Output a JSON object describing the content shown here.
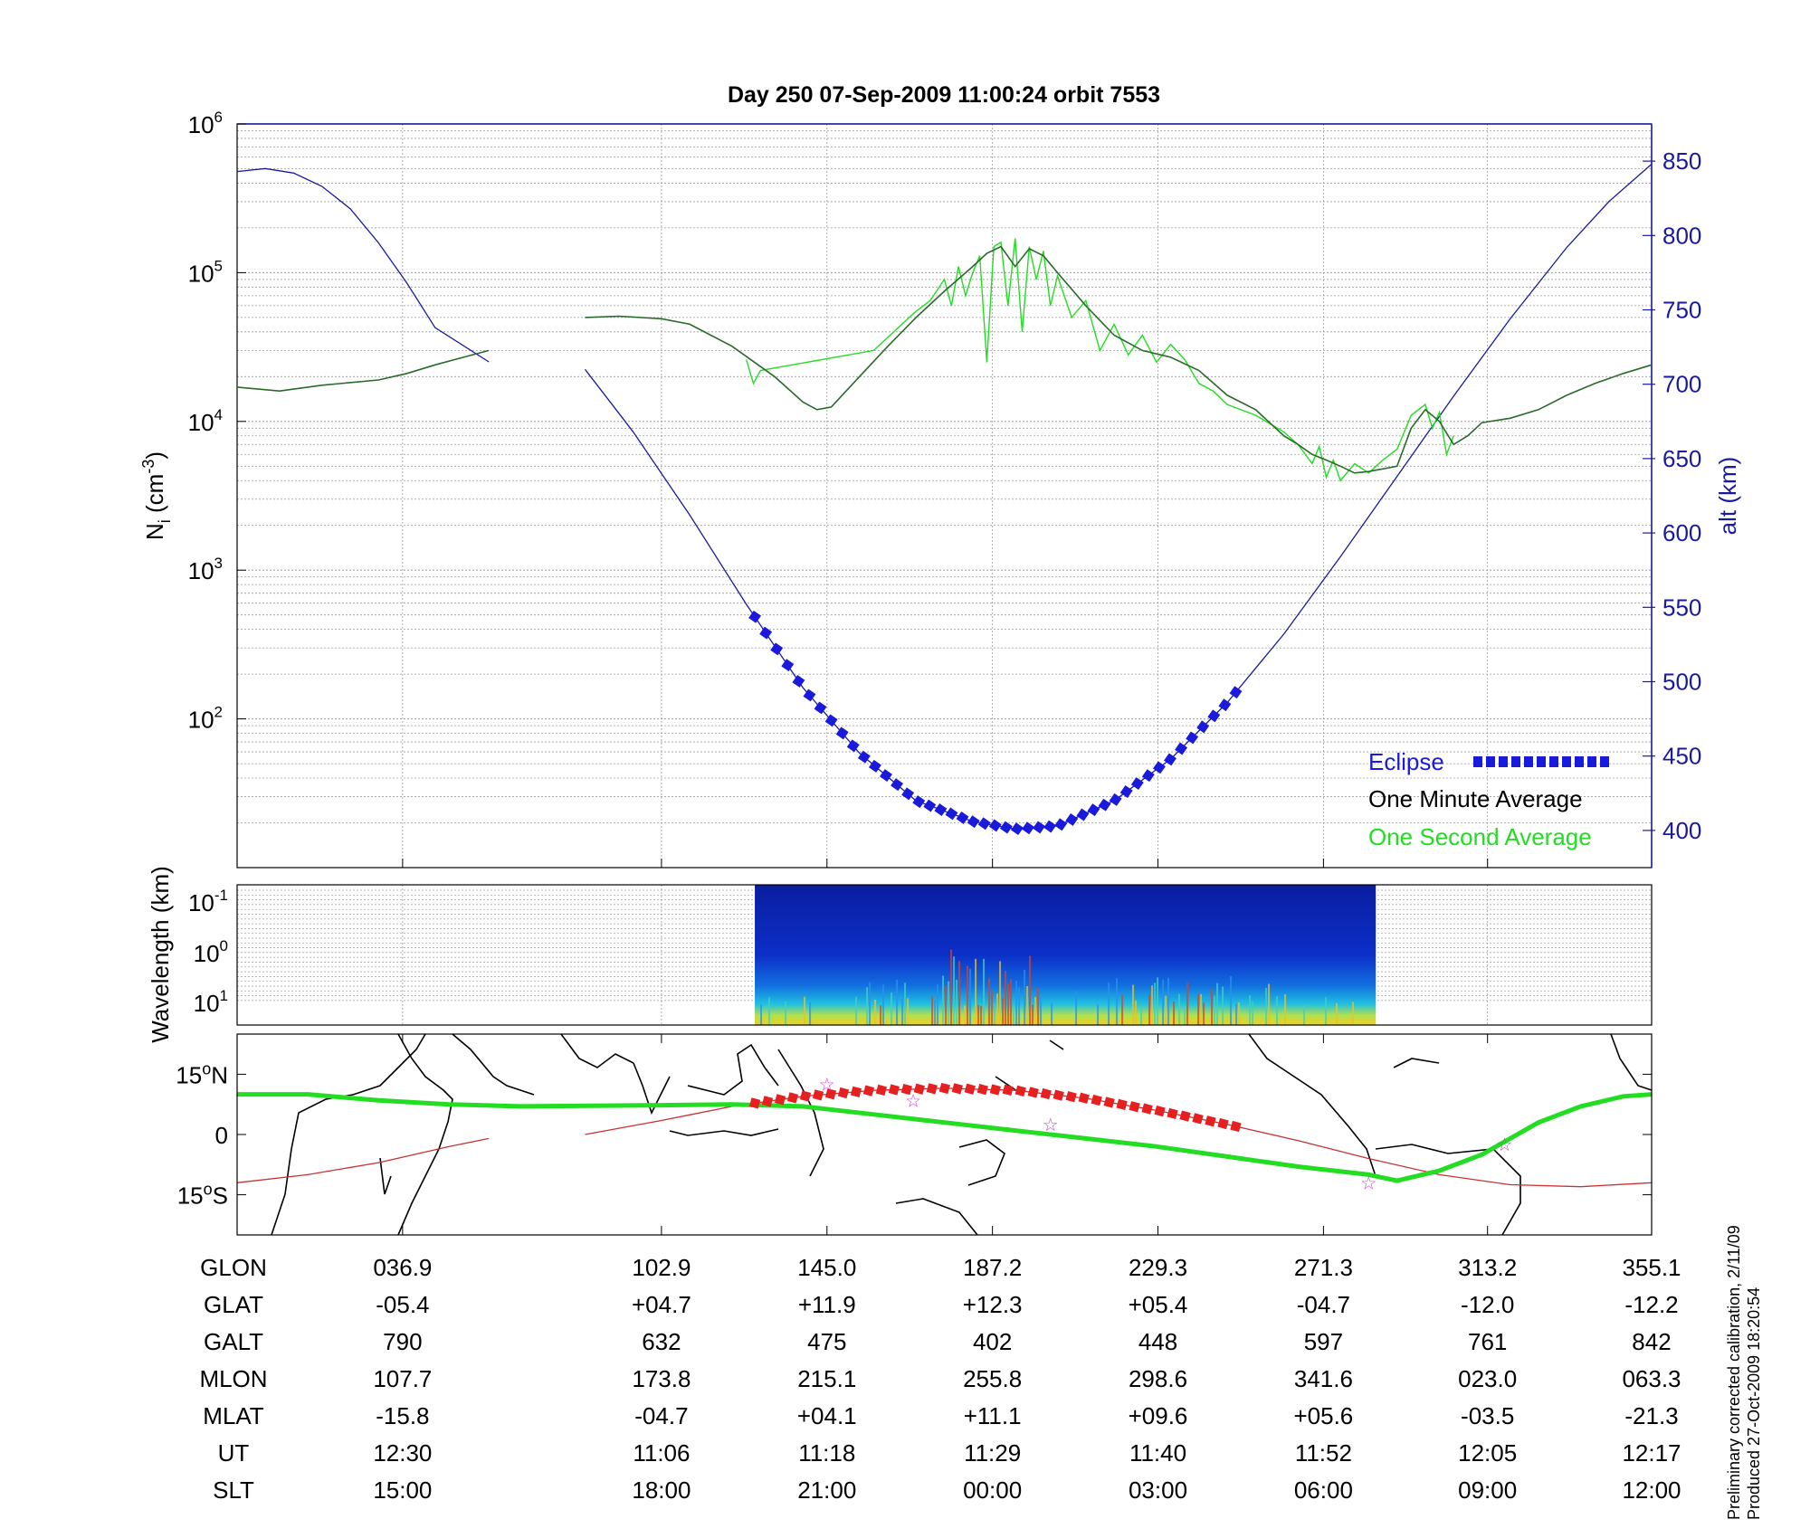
{
  "chart_data": [
    {
      "type": "line",
      "title": "Day 250  07-Sep-2009 11:00:24   orbit 7553",
      "ylabel_left_base": "N",
      "ylabel_left_sub": "i",
      "ylabel_left_unit": "(cm",
      "ylabel_left_exp": "-3",
      "ylabel_left_close": ")",
      "ylabel_right": "alt (km)",
      "y_left_scale": "log",
      "y_left_range": [
        10,
        1000000
      ],
      "y_left_ticks": [
        {
          "base": "10",
          "exp": "2",
          "value": 100
        },
        {
          "base": "10",
          "exp": "3",
          "value": 1000
        },
        {
          "base": "10",
          "exp": "4",
          "value": 10000
        },
        {
          "base": "10",
          "exp": "5",
          "value": 100000
        },
        {
          "base": "10",
          "exp": "6",
          "value": 1000000
        }
      ],
      "y_right_range": [
        375,
        875
      ],
      "y_right_ticks": [
        "400",
        "450",
        "500",
        "550",
        "600",
        "650",
        "700",
        "750",
        "800",
        "850"
      ],
      "x_range": [
        0,
        1
      ],
      "grid": true,
      "legend_position": "bottom-right",
      "legend": [
        {
          "label": "Eclipse",
          "color": "#1a1adc"
        },
        {
          "label": "One Minute Average",
          "color": "#000000"
        },
        {
          "label": "One Second Average",
          "color": "#22dd22"
        }
      ],
      "series": [
        {
          "name": "One Minute Average",
          "color": "#2a6a2a",
          "axis": "left",
          "points": [
            [
              0.0,
              17000
            ],
            [
              0.03,
              16000
            ],
            [
              0.06,
              17500
            ],
            [
              0.1,
              19000
            ],
            [
              0.12,
              21000
            ],
            [
              0.14,
              24000
            ],
            [
              0.16,
              27000
            ],
            [
              0.178,
              30000
            ],
            null,
            [
              0.246,
              50000
            ],
            [
              0.27,
              51000
            ],
            [
              0.3,
              49000
            ],
            [
              0.32,
              45000
            ],
            [
              0.35,
              32000
            ],
            [
              0.38,
              20000
            ],
            [
              0.4,
              13500
            ],
            [
              0.41,
              12000
            ],
            [
              0.42,
              12500
            ],
            [
              0.44,
              20000
            ],
            [
              0.46,
              32000
            ],
            [
              0.48,
              50000
            ],
            [
              0.5,
              75000
            ],
            [
              0.52,
              110000
            ],
            [
              0.53,
              135000
            ],
            [
              0.54,
              150000
            ],
            [
              0.55,
              110000
            ],
            [
              0.56,
              145000
            ],
            [
              0.57,
              130000
            ],
            [
              0.58,
              100000
            ],
            [
              0.6,
              60000
            ],
            [
              0.62,
              38000
            ],
            [
              0.64,
              30000
            ],
            [
              0.66,
              27000
            ],
            [
              0.68,
              22000
            ],
            [
              0.7,
              15000
            ],
            [
              0.72,
              12000
            ],
            [
              0.74,
              8000
            ],
            [
              0.75,
              7000
            ],
            [
              0.76,
              6000
            ],
            [
              0.77,
              5500
            ],
            [
              0.78,
              5000
            ],
            [
              0.79,
              4500
            ],
            [
              0.8,
              4600
            ],
            [
              0.82,
              5000
            ],
            [
              0.83,
              9000
            ],
            [
              0.84,
              12000
            ],
            [
              0.85,
              10000
            ],
            [
              0.86,
              7000
            ],
            [
              0.87,
              8000
            ],
            [
              0.88,
              9800
            ],
            [
              0.9,
              10500
            ],
            [
              0.92,
              12000
            ],
            [
              0.94,
              15000
            ],
            [
              0.96,
              18000
            ],
            [
              0.98,
              21000
            ],
            [
              1.0,
              24000
            ]
          ]
        },
        {
          "name": "One Second Average",
          "color": "#22dd22",
          "axis": "left",
          "points": [
            [
              0.36,
              26000
            ],
            [
              0.365,
              18000
            ],
            [
              0.37,
              22000
            ],
            [
              0.45,
              30000
            ],
            [
              0.47,
              45000
            ],
            [
              0.48,
              55000
            ],
            [
              0.49,
              65000
            ],
            [
              0.5,
              90000
            ],
            [
              0.505,
              60000
            ],
            [
              0.51,
              110000
            ],
            [
              0.515,
              70000
            ],
            [
              0.52,
              100000
            ],
            [
              0.525,
              130000
            ],
            [
              0.53,
              25000
            ],
            [
              0.535,
              150000
            ],
            [
              0.54,
              160000
            ],
            [
              0.545,
              60000
            ],
            [
              0.55,
              170000
            ],
            [
              0.555,
              40000
            ],
            [
              0.56,
              150000
            ],
            [
              0.565,
              90000
            ],
            [
              0.57,
              140000
            ],
            [
              0.575,
              60000
            ],
            [
              0.58,
              95000
            ],
            [
              0.59,
              50000
            ],
            [
              0.6,
              65000
            ],
            [
              0.61,
              30000
            ],
            [
              0.62,
              45000
            ],
            [
              0.63,
              28000
            ],
            [
              0.64,
              38000
            ],
            [
              0.65,
              25000
            ],
            [
              0.66,
              33000
            ],
            [
              0.67,
              26000
            ],
            [
              0.68,
              18000
            ],
            [
              0.69,
              16000
            ],
            [
              0.7,
              13000
            ],
            [
              0.72,
              11000
            ],
            [
              0.74,
              8500
            ],
            [
              0.75,
              7000
            ],
            [
              0.76,
              5200
            ],
            [
              0.765,
              6800
            ],
            [
              0.77,
              4200
            ],
            [
              0.775,
              5500
            ],
            [
              0.78,
              4000
            ],
            [
              0.79,
              5200
            ],
            [
              0.8,
              4500
            ],
            [
              0.81,
              5500
            ],
            [
              0.82,
              6500
            ],
            [
              0.83,
              11000
            ],
            [
              0.84,
              13000
            ],
            [
              0.845,
              9000
            ],
            [
              0.85,
              11500
            ],
            [
              0.855,
              6000
            ],
            [
              0.86,
              8000
            ]
          ]
        },
        {
          "name": "alt (km)",
          "color": "#1a1aa0",
          "axis": "right",
          "points": [
            [
              0.0,
              843
            ],
            [
              0.02,
              845
            ],
            [
              0.04,
              842
            ],
            [
              0.06,
              833
            ],
            [
              0.08,
              818
            ],
            [
              0.1,
              795
            ],
            [
              0.12,
              768
            ],
            [
              0.14,
              738
            ],
            [
              0.178,
              715
            ],
            null,
            [
              0.246,
              710
            ],
            [
              0.28,
              668
            ],
            [
              0.32,
              612
            ],
            [
              0.36,
              552
            ],
            [
              0.4,
              496
            ],
            [
              0.44,
              452
            ],
            [
              0.48,
              420
            ],
            [
              0.52,
              406
            ],
            [
              0.55,
              401
            ],
            [
              0.58,
              403
            ],
            [
              0.62,
              420
            ],
            [
              0.66,
              448
            ],
            [
              0.7,
              486
            ],
            [
              0.74,
              532
            ],
            [
              0.78,
              584
            ],
            [
              0.82,
              638
            ],
            [
              0.86,
              692
            ],
            [
              0.9,
              744
            ],
            [
              0.94,
              792
            ],
            [
              0.97,
              823
            ],
            [
              1.0,
              848
            ]
          ]
        },
        {
          "name": "Eclipse",
          "color": "#1a1adc",
          "axis": "right",
          "x_start": 0.366,
          "x_end": 0.706
        }
      ]
    },
    {
      "type": "heatmap",
      "ylabel": "Wavelength (km)",
      "y_ticks": [
        {
          "base": "10",
          "exp": "-1"
        },
        {
          "base": "10",
          "exp": "0"
        },
        {
          "base": "10",
          "exp": "1"
        }
      ],
      "x_start": 0.366,
      "x_end": 0.805
    },
    {
      "type": "line",
      "map": true,
      "y_ticks": [
        {
          "label": "15",
          "suffix": "N"
        },
        {
          "label": "0",
          "suffix": ""
        },
        {
          "label": "15",
          "suffix": "S"
        }
      ],
      "y_range": [
        -25,
        25
      ],
      "series": [
        {
          "name": "ground track",
          "color": "#22dd22",
          "points": [
            [
              0.0,
              10
            ],
            [
              0.05,
              10
            ],
            [
              0.1,
              8.5
            ],
            [
              0.15,
              7.5
            ],
            [
              0.2,
              7
            ],
            [
              0.3,
              7.3
            ],
            [
              0.35,
              7.5
            ],
            [
              0.4,
              7
            ],
            [
              0.45,
              5
            ],
            [
              0.5,
              3
            ],
            [
              0.55,
              1
            ],
            [
              0.6,
              -1
            ],
            [
              0.65,
              -3
            ],
            [
              0.7,
              -5.5
            ],
            [
              0.75,
              -8
            ],
            [
              0.8,
              -10
            ],
            [
              0.82,
              -11.5
            ],
            [
              0.85,
              -9
            ],
            [
              0.88,
              -5
            ],
            [
              0.9,
              -1
            ],
            [
              0.92,
              3
            ],
            [
              0.95,
              7
            ],
            [
              0.98,
              9.5
            ],
            [
              1.0,
              10
            ]
          ]
        },
        {
          "name": "magnetic equator",
          "color": "#c83232",
          "points": [
            [
              0.0,
              -12
            ],
            [
              0.05,
              -10
            ],
            [
              0.1,
              -7
            ],
            [
              0.15,
              -3
            ],
            [
              0.178,
              -1
            ],
            null,
            [
              0.246,
              0
            ],
            [
              0.3,
              3.5
            ],
            [
              0.35,
              7
            ],
            [
              0.4,
              9.5
            ],
            [
              0.45,
              11
            ],
            [
              0.5,
              11.5
            ],
            [
              0.55,
              11
            ],
            [
              0.6,
              9
            ],
            [
              0.65,
              6
            ],
            [
              0.7,
              2.5
            ],
            [
              0.75,
              -1.5
            ],
            [
              0.8,
              -6
            ],
            [
              0.85,
              -10
            ],
            [
              0.9,
              -12.5
            ],
            [
              0.95,
              -13
            ],
            [
              1.0,
              -12
            ]
          ]
        },
        {
          "name": "Eclipse",
          "color": "#e62020",
          "x_start": 0.366,
          "x_end": 0.706
        }
      ]
    }
  ],
  "table": {
    "row_labels": [
      "GLON",
      "GLAT",
      "GALT",
      "MLON",
      "MLAT",
      "UT",
      "SLT"
    ],
    "columns": [
      [
        "036.9",
        "-05.4",
        "790",
        "107.7",
        "-15.8",
        "12:30",
        "15:00"
      ],
      [
        "102.9",
        "+04.7",
        "632",
        "173.8",
        "-04.7",
        "11:06",
        "18:00"
      ],
      [
        "145.0",
        "+11.9",
        "475",
        "215.1",
        "+04.1",
        "11:18",
        "21:00"
      ],
      [
        "187.2",
        "+12.3",
        "402",
        "255.8",
        "+11.1",
        "11:29",
        "00:00"
      ],
      [
        "229.3",
        "+05.4",
        "448",
        "298.6",
        "+09.6",
        "11:40",
        "03:00"
      ],
      [
        "271.3",
        "-04.7",
        "597",
        "341.6",
        "+05.6",
        "11:52",
        "06:00"
      ],
      [
        "313.2",
        "-12.0",
        "761",
        "023.0",
        "-03.5",
        "12:05",
        "09:00"
      ],
      [
        "355.1",
        "-12.2",
        "842",
        "063.3",
        "-21.3",
        "12:17",
        "12:00"
      ]
    ]
  },
  "footnote": {
    "line1": "Preliminary corrected calibration, 2/11/09",
    "line2": "Produced 27-Oct-2009 18:20:54"
  },
  "colors": {
    "axis_right": "#1a1aa0",
    "grid": "#999999"
  }
}
